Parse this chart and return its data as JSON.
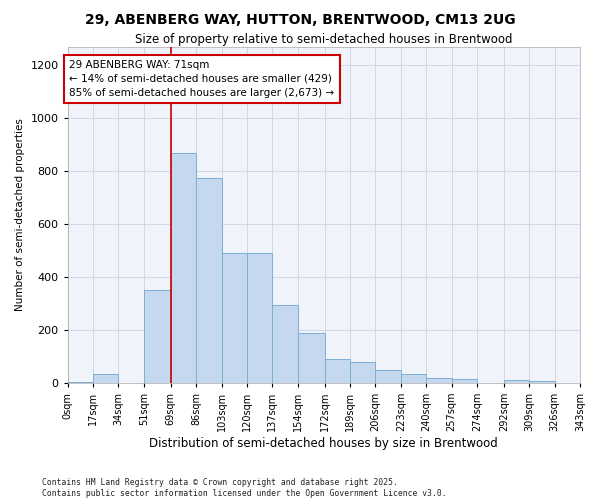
{
  "title1": "29, ABENBERG WAY, HUTTON, BRENTWOOD, CM13 2UG",
  "title2": "Size of property relative to semi-detached houses in Brentwood",
  "xlabel": "Distribution of semi-detached houses by size in Brentwood",
  "ylabel": "Number of semi-detached properties",
  "footnote1": "Contains HM Land Registry data © Crown copyright and database right 2025.",
  "footnote2": "Contains public sector information licensed under the Open Government Licence v3.0.",
  "bar_color": "#c5d8f0",
  "bar_edge_color": "#7bafd4",
  "grid_color": "#c8d4e8",
  "annotation_text": "29 ABENBERG WAY: 71sqm\n← 14% of semi-detached houses are smaller (429)\n85% of semi-detached houses are larger (2,673) →",
  "vline_x": 69,
  "vline_color": "#cc0000",
  "bin_edges": [
    0,
    17,
    34,
    51,
    69,
    86,
    103,
    120,
    137,
    154,
    172,
    189,
    206,
    223,
    240,
    257,
    274,
    292,
    309,
    326,
    343
  ],
  "bin_labels": [
    "0sqm",
    "17sqm",
    "34sqm",
    "51sqm",
    "69sqm",
    "86sqm",
    "103sqm",
    "120sqm",
    "137sqm",
    "154sqm",
    "172sqm",
    "189sqm",
    "206sqm",
    "223sqm",
    "240sqm",
    "257sqm",
    "274sqm",
    "292sqm",
    "309sqm",
    "326sqm",
    "343sqm"
  ],
  "bar_heights": [
    5,
    35,
    0,
    350,
    870,
    775,
    490,
    490,
    295,
    190,
    90,
    80,
    47,
    35,
    20,
    13,
    0,
    12,
    7,
    0
  ],
  "ylim": [
    0,
    1270
  ],
  "yticks": [
    0,
    200,
    400,
    600,
    800,
    1000,
    1200
  ],
  "annotation_box_color": "#ffffff",
  "annotation_box_edgecolor": "#cc0000",
  "bg_color": "#f0f4fa"
}
